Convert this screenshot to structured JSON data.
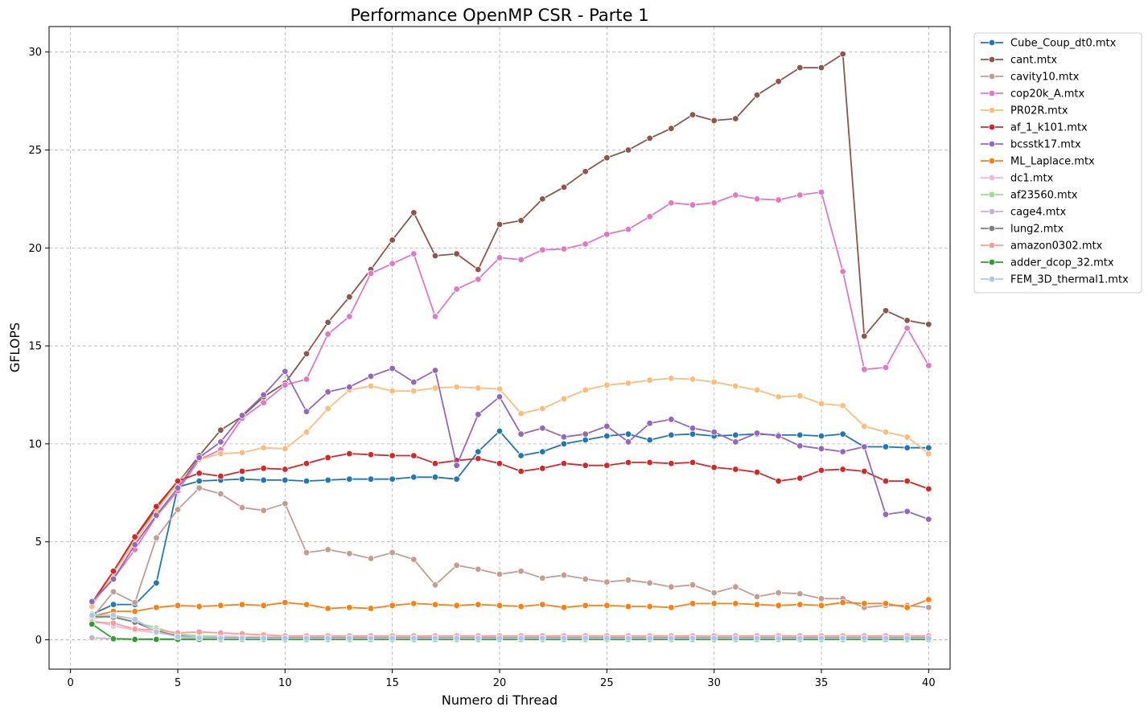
{
  "chart_data": {
    "type": "line",
    "title": "Performance OpenMP CSR - Parte 1",
    "xlabel": "Numero di Thread",
    "ylabel": "GFLOPS",
    "xlim": [
      -1,
      41
    ],
    "ylim": [
      -1.5,
      31.3
    ],
    "xticks": [
      0,
      5,
      10,
      15,
      20,
      25,
      30,
      35,
      40
    ],
    "yticks": [
      0,
      5,
      10,
      15,
      20,
      25,
      30
    ],
    "grid": true,
    "legend_position": "outside-top-right",
    "x": [
      1,
      2,
      3,
      4,
      5,
      6,
      7,
      8,
      9,
      10,
      11,
      12,
      13,
      14,
      15,
      16,
      17,
      18,
      19,
      20,
      21,
      22,
      23,
      24,
      25,
      26,
      27,
      28,
      29,
      30,
      31,
      32,
      33,
      34,
      35,
      36,
      37,
      38,
      39,
      40
    ],
    "series": [
      {
        "name": "Cube_Coup_dt0.mtx",
        "color": "#1f77b4",
        "values": [
          1.3,
          1.8,
          1.8,
          2.9,
          7.8,
          8.1,
          8.15,
          8.2,
          8.15,
          8.15,
          8.1,
          8.15,
          8.2,
          8.2,
          8.2,
          8.3,
          8.3,
          8.2,
          9.6,
          10.65,
          9.4,
          9.6,
          10.0,
          10.2,
          10.4,
          10.5,
          10.2,
          10.45,
          10.5,
          10.4,
          10.45,
          10.5,
          10.45,
          10.45,
          10.4,
          10.5,
          9.85,
          9.85,
          9.8,
          9.8
        ]
      },
      {
        "name": "cant.mtx",
        "color": "#8c564b",
        "values": [
          1.8,
          3.5,
          5.2,
          6.7,
          8.0,
          9.4,
          10.7,
          11.4,
          12.4,
          13.1,
          14.6,
          16.2,
          17.5,
          18.9,
          20.4,
          21.8,
          19.6,
          19.7,
          18.9,
          21.2,
          21.4,
          22.5,
          23.1,
          23.9,
          24.6,
          25.0,
          25.6,
          26.1,
          26.8,
          26.5,
          26.6,
          27.8,
          28.5,
          29.2,
          29.2,
          29.9,
          15.5,
          16.8,
          16.3,
          16.1
        ]
      },
      {
        "name": "cavity10.mtx",
        "color": "#c49c94",
        "values": [
          1.1,
          2.45,
          1.9,
          5.2,
          6.65,
          7.75,
          7.45,
          6.75,
          6.6,
          6.95,
          4.45,
          4.6,
          4.4,
          4.15,
          4.45,
          4.1,
          2.8,
          3.8,
          3.6,
          3.35,
          3.5,
          3.15,
          3.3,
          3.1,
          2.95,
          3.05,
          2.9,
          2.7,
          2.8,
          2.4,
          2.7,
          2.2,
          2.4,
          2.35,
          2.1,
          2.1,
          1.65,
          1.75,
          1.75,
          1.65
        ]
      },
      {
        "name": "cop20k_A.mtx",
        "color": "#e377c2",
        "values": [
          1.9,
          3.1,
          4.6,
          6.3,
          7.6,
          9.2,
          9.7,
          11.3,
          12.1,
          13.0,
          13.3,
          15.6,
          16.5,
          18.7,
          19.2,
          19.7,
          16.5,
          17.9,
          18.4,
          19.5,
          19.4,
          19.9,
          19.95,
          20.2,
          20.7,
          20.95,
          21.6,
          22.3,
          22.2,
          22.3,
          22.7,
          22.5,
          22.45,
          22.7,
          22.85,
          18.8,
          13.8,
          13.9,
          15.9,
          14.0
        ]
      },
      {
        "name": "PR02R.mtx",
        "color": "#ffbb78",
        "values": [
          1.7,
          3.4,
          5.0,
          6.6,
          8.0,
          9.2,
          9.5,
          9.55,
          9.8,
          9.75,
          10.6,
          11.8,
          12.75,
          12.95,
          12.7,
          12.7,
          12.85,
          12.9,
          12.85,
          12.8,
          11.55,
          11.8,
          12.3,
          12.75,
          13.0,
          13.1,
          13.25,
          13.35,
          13.3,
          13.15,
          12.95,
          12.75,
          12.4,
          12.45,
          12.05,
          11.95,
          10.9,
          10.6,
          10.35,
          9.5
        ]
      },
      {
        "name": "af_1_k101.mtx",
        "color": "#d62728",
        "values": [
          1.9,
          3.5,
          5.25,
          6.8,
          8.1,
          8.5,
          8.35,
          8.6,
          8.75,
          8.7,
          9.0,
          9.3,
          9.5,
          9.45,
          9.4,
          9.4,
          9.0,
          9.15,
          9.25,
          9.0,
          8.6,
          8.75,
          9.0,
          8.9,
          8.9,
          9.05,
          9.05,
          9.0,
          9.05,
          8.8,
          8.7,
          8.55,
          8.1,
          8.25,
          8.65,
          8.7,
          8.6,
          8.1,
          8.1,
          7.7
        ]
      },
      {
        "name": "bcsstk17.mtx",
        "color": "#9467bd",
        "values": [
          1.95,
          3.1,
          4.85,
          6.35,
          7.75,
          9.3,
          10.1,
          11.45,
          12.5,
          13.7,
          11.65,
          12.65,
          12.9,
          13.45,
          13.85,
          13.15,
          13.75,
          8.9,
          11.5,
          12.4,
          10.5,
          10.8,
          10.35,
          10.5,
          10.9,
          10.1,
          11.05,
          11.25,
          10.8,
          10.6,
          10.1,
          10.55,
          10.4,
          9.9,
          9.75,
          9.6,
          9.85,
          6.4,
          6.55,
          6.15
        ]
      },
      {
        "name": "ML_Laplace.mtx",
        "color": "#ff7f0e",
        "values": [
          1.2,
          1.45,
          1.45,
          1.65,
          1.75,
          1.7,
          1.75,
          1.8,
          1.75,
          1.9,
          1.8,
          1.6,
          1.65,
          1.6,
          1.75,
          1.85,
          1.8,
          1.75,
          1.8,
          1.75,
          1.7,
          1.8,
          1.65,
          1.75,
          1.75,
          1.7,
          1.7,
          1.65,
          1.85,
          1.85,
          1.85,
          1.8,
          1.75,
          1.8,
          1.75,
          1.9,
          1.85,
          1.85,
          1.65,
          2.05
        ]
      },
      {
        "name": "dc1.mtx",
        "color": "#f7b6d2",
        "values": [
          1.0,
          0.7,
          0.5,
          0.35,
          0.25,
          0.2,
          0.2,
          0.15,
          0.15,
          0.15,
          0.15,
          0.15,
          0.15,
          0.15,
          0.15,
          0.15,
          0.15,
          0.15,
          0.15,
          0.15,
          0.15,
          0.15,
          0.15,
          0.15,
          0.15,
          0.15,
          0.15,
          0.15,
          0.15,
          0.15,
          0.15,
          0.15,
          0.15,
          0.15,
          0.15,
          0.15,
          0.15,
          0.15,
          0.15,
          0.15
        ]
      },
      {
        "name": "af23560.mtx",
        "color": "#98df8a",
        "values": [
          1.1,
          1.2,
          0.9,
          0.6,
          0.3,
          0.2,
          0.1,
          0.05,
          0.05,
          0.05,
          0.05,
          0.05,
          0.05,
          0.05,
          0.05,
          0.05,
          0.05,
          0.05,
          0.05,
          0.05,
          0.05,
          0.05,
          0.05,
          0.05,
          0.05,
          0.05,
          0.05,
          0.05,
          0.05,
          0.05,
          0.05,
          0.05,
          0.05,
          0.05,
          0.05,
          0.05,
          0.05,
          0.05,
          0.05,
          0.05
        ]
      },
      {
        "name": "cage4.mtx",
        "color": "#c5b0d5",
        "values": [
          0.1,
          0.05,
          0.05,
          0.05,
          0.05,
          0.05,
          0.05,
          0.05,
          0.05,
          0.05,
          0.05,
          0.05,
          0.05,
          0.05,
          0.05,
          0.05,
          0.05,
          0.05,
          0.05,
          0.05,
          0.05,
          0.05,
          0.05,
          0.05,
          0.05,
          0.05,
          0.05,
          0.05,
          0.05,
          0.05,
          0.05,
          0.05,
          0.05,
          0.05,
          0.05,
          0.05,
          0.05,
          0.05,
          0.05,
          0.05
        ]
      },
      {
        "name": "lung2.mtx",
        "color": "#7f7f7f",
        "values": [
          1.2,
          1.15,
          0.9,
          0.45,
          0.2,
          0.1,
          0.1,
          0.1,
          0.1,
          0.1,
          0.1,
          0.1,
          0.1,
          0.1,
          0.1,
          0.1,
          0.1,
          0.1,
          0.1,
          0.1,
          0.1,
          0.1,
          0.1,
          0.1,
          0.1,
          0.1,
          0.1,
          0.1,
          0.1,
          0.1,
          0.1,
          0.1,
          0.1,
          0.1,
          0.1,
          0.1,
          0.1,
          0.1,
          0.1,
          0.1
        ]
      },
      {
        "name": "amazon0302.mtx",
        "color": "#ff9896",
        "values": [
          0.9,
          0.85,
          0.55,
          0.5,
          0.35,
          0.4,
          0.35,
          0.3,
          0.25,
          0.2,
          0.2,
          0.2,
          0.2,
          0.2,
          0.2,
          0.2,
          0.2,
          0.2,
          0.2,
          0.2,
          0.2,
          0.2,
          0.2,
          0.2,
          0.2,
          0.2,
          0.2,
          0.2,
          0.2,
          0.2,
          0.2,
          0.2,
          0.2,
          0.2,
          0.2,
          0.2,
          0.2,
          0.2,
          0.2,
          0.2
        ]
      },
      {
        "name": "adder_dcop_32.mtx",
        "color": "#2ca02c",
        "values": [
          0.8,
          0.05,
          0.02,
          0.02,
          0.02,
          0.02,
          0.02,
          0.02,
          0.02,
          0.02,
          0.02,
          0.02,
          0.02,
          0.02,
          0.02,
          0.02,
          0.02,
          0.02,
          0.02,
          0.02,
          0.02,
          0.02,
          0.02,
          0.02,
          0.02,
          0.02,
          0.02,
          0.02,
          0.02,
          0.02,
          0.02,
          0.02,
          0.02,
          0.02,
          0.02,
          0.02,
          0.02,
          0.02,
          0.02,
          0.02
        ]
      },
      {
        "name": "FEM_3D_thermal1.mtx",
        "color": "#aec7e8",
        "values": [
          1.25,
          1.25,
          1.05,
          0.4,
          0.15,
          0.1,
          0.08,
          0.08,
          0.08,
          0.08,
          0.08,
          0.08,
          0.08,
          0.08,
          0.08,
          0.08,
          0.08,
          0.08,
          0.08,
          0.08,
          0.08,
          0.08,
          0.08,
          0.08,
          0.08,
          0.08,
          0.08,
          0.08,
          0.08,
          0.08,
          0.08,
          0.08,
          0.08,
          0.08,
          0.08,
          0.08,
          0.08,
          0.08,
          0.08,
          0.08
        ]
      }
    ]
  }
}
